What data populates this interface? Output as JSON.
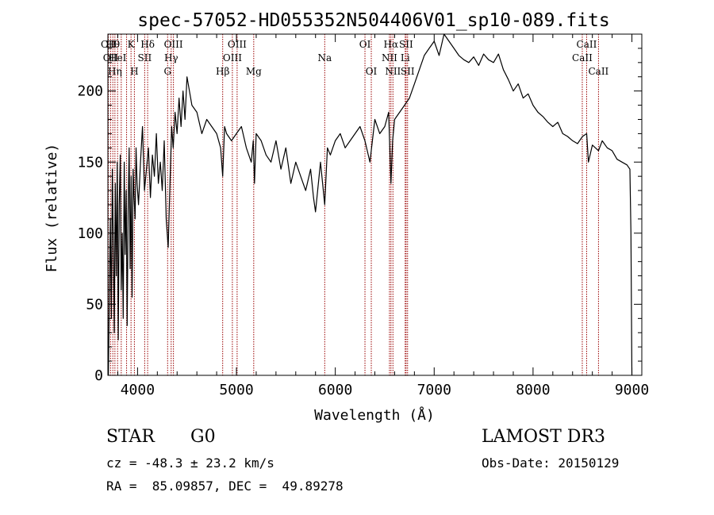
{
  "chart_data": {
    "type": "line",
    "title": "spec-57052-HD055352N504406V01_sp10-089.fits",
    "xlabel": "Wavelength (Å)",
    "ylabel": "Flux (relative)",
    "xlim": [
      3700,
      9100
    ],
    "ylim": [
      0,
      240
    ],
    "xticks": [
      4000,
      5000,
      6000,
      7000,
      8000,
      9000
    ],
    "yticks": [
      0,
      50,
      100,
      150,
      200
    ],
    "minor_x_step": 200,
    "minor_y_step": 10,
    "line_color": "#000000",
    "marker_color": "#990000",
    "series": [
      {
        "name": "flux",
        "x": [
          3705,
          3715,
          3725,
          3735,
          3745,
          3755,
          3765,
          3775,
          3785,
          3795,
          3805,
          3815,
          3825,
          3835,
          3845,
          3855,
          3865,
          3875,
          3885,
          3895,
          3905,
          3915,
          3925,
          3935,
          3945,
          3955,
          3965,
          3975,
          3985,
          3995,
          4010,
          4030,
          4050,
          4070,
          4090,
          4110,
          4130,
          4150,
          4170,
          4190,
          4210,
          4230,
          4250,
          4270,
          4290,
          4310,
          4330,
          4345,
          4360,
          4380,
          4400,
          4420,
          4440,
          4460,
          4480,
          4500,
          4550,
          4600,
          4650,
          4700,
          4750,
          4800,
          4840,
          4861,
          4880,
          4900,
          4950,
          5000,
          5050,
          5100,
          5150,
          5170,
          5183,
          5200,
          5250,
          5300,
          5350,
          5400,
          5450,
          5500,
          5550,
          5600,
          5650,
          5700,
          5750,
          5780,
          5800,
          5850,
          5893,
          5920,
          5950,
          6000,
          6050,
          6100,
          6150,
          6200,
          6250,
          6300,
          6350,
          6400,
          6450,
          6500,
          6540,
          6563,
          6580,
          6600,
          6650,
          6700,
          6750,
          6800,
          6850,
          6900,
          6950,
          7000,
          7050,
          7100,
          7150,
          7200,
          7250,
          7300,
          7350,
          7400,
          7450,
          7500,
          7550,
          7600,
          7650,
          7700,
          7750,
          7800,
          7850,
          7900,
          7950,
          8000,
          8050,
          8100,
          8150,
          8200,
          8250,
          8300,
          8350,
          8400,
          8450,
          8500,
          8542,
          8560,
          8600,
          8662,
          8700,
          8750,
          8800,
          8850,
          8900,
          8950,
          8980,
          8990,
          9000
        ],
        "y": [
          0,
          60,
          110,
          40,
          145,
          90,
          30,
          135,
          70,
          150,
          25,
          120,
          155,
          60,
          100,
          40,
          150,
          85,
          130,
          35,
          115,
          160,
          75,
          140,
          55,
          145,
          125,
          110,
          160,
          135,
          120,
          150,
          175,
          130,
          145,
          160,
          125,
          155,
          140,
          170,
          135,
          150,
          130,
          165,
          110,
          90,
          140,
          175,
          160,
          185,
          170,
          195,
          175,
          200,
          180,
          210,
          190,
          185,
          170,
          180,
          175,
          170,
          160,
          140,
          175,
          170,
          165,
          170,
          175,
          160,
          150,
          165,
          135,
          170,
          165,
          155,
          150,
          165,
          145,
          160,
          135,
          150,
          140,
          130,
          145,
          125,
          115,
          150,
          120,
          160,
          155,
          165,
          170,
          160,
          165,
          170,
          175,
          165,
          150,
          180,
          170,
          175,
          185,
          135,
          165,
          180,
          185,
          190,
          195,
          205,
          215,
          225,
          230,
          235,
          225,
          240,
          235,
          230,
          225,
          222,
          220,
          224,
          218,
          226,
          222,
          220,
          226,
          215,
          208,
          200,
          205,
          195,
          198,
          190,
          185,
          182,
          178,
          175,
          178,
          170,
          168,
          165,
          163,
          168,
          170,
          150,
          162,
          158,
          165,
          160,
          158,
          152,
          150,
          148,
          145,
          100,
          0
        ]
      }
    ],
    "lines": [
      {
        "wl": 3705,
        "labels": [
          "OII",
          "",
          ""
        ]
      },
      {
        "wl": 3727,
        "labels": [
          "",
          "OII",
          ""
        ]
      },
      {
        "wl": 3750,
        "labels": [
          "Hθ",
          "",
          ""
        ]
      },
      {
        "wl": 3771,
        "labels": [
          "",
          "",
          "Hη"
        ]
      },
      {
        "wl": 3798,
        "labels": [
          "",
          "HeI",
          ""
        ]
      },
      {
        "wl": 3835,
        "labels": [
          "",
          "",
          ""
        ]
      },
      {
        "wl": 3889,
        "labels": [
          "",
          "",
          ""
        ]
      },
      {
        "wl": 3934,
        "labels": [
          "K",
          "",
          ""
        ]
      },
      {
        "wl": 3968,
        "labels": [
          "",
          "",
          "H"
        ]
      },
      {
        "wl": 4072,
        "labels": [
          "",
          "SII",
          ""
        ]
      },
      {
        "wl": 4102,
        "labels": [
          "Hδ",
          "",
          ""
        ]
      },
      {
        "wl": 4304,
        "labels": [
          "",
          "",
          "G"
        ]
      },
      {
        "wl": 4340,
        "labels": [
          "",
          "Hγ",
          ""
        ]
      },
      {
        "wl": 4363,
        "labels": [
          "OIII",
          "",
          ""
        ]
      },
      {
        "wl": 4861,
        "labels": [
          "",
          "",
          "Hβ"
        ]
      },
      {
        "wl": 4959,
        "labels": [
          "",
          "OIII",
          ""
        ]
      },
      {
        "wl": 5007,
        "labels": [
          "OIII",
          "",
          ""
        ]
      },
      {
        "wl": 5175,
        "labels": [
          "",
          "",
          "Mg"
        ]
      },
      {
        "wl": 5893,
        "labels": [
          "",
          "Na",
          ""
        ]
      },
      {
        "wl": 6300,
        "labels": [
          "OI",
          "",
          ""
        ]
      },
      {
        "wl": 6364,
        "labels": [
          "",
          "",
          "OI"
        ]
      },
      {
        "wl": 6548,
        "labels": [
          "",
          "NII",
          ""
        ]
      },
      {
        "wl": 6563,
        "labels": [
          "Hα",
          "",
          ""
        ]
      },
      {
        "wl": 6583,
        "labels": [
          "",
          "",
          "NII"
        ]
      },
      {
        "wl": 6707,
        "labels": [
          "",
          "Li",
          ""
        ]
      },
      {
        "wl": 6716,
        "labels": [
          "SII",
          "",
          ""
        ]
      },
      {
        "wl": 6731,
        "labels": [
          "",
          "",
          "SII"
        ]
      },
      {
        "wl": 8498,
        "labels": [
          "",
          "CaII",
          ""
        ]
      },
      {
        "wl": 8542,
        "labels": [
          "CaII",
          "",
          ""
        ]
      },
      {
        "wl": 8662,
        "labels": [
          "",
          "",
          "CaII"
        ]
      }
    ]
  },
  "info": {
    "class": "STAR",
    "subclass": "G0",
    "survey": "LAMOST DR3",
    "cz": "cz = -48.3 ± 23.2 km/s",
    "obs_date": "Obs-Date: 20150129",
    "radec": "RA =  85.09857, DEC =  49.89278"
  }
}
